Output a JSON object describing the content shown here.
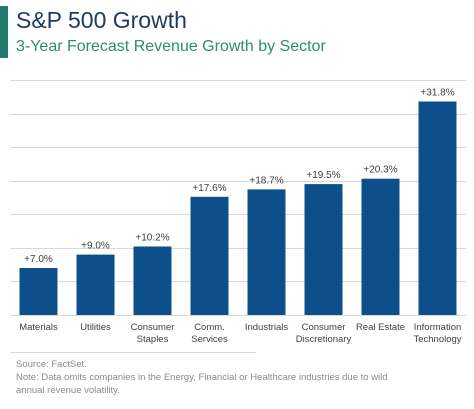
{
  "header": {
    "title": "S&P 500 Growth",
    "subtitle": "3-Year Forecast Revenue Growth by Sector"
  },
  "colors": {
    "accent": "#1f7a6b",
    "subtitle": "#2e8b75",
    "bar": "#0d4f8b",
    "grid": "#d9d9d9",
    "text": "#404040"
  },
  "chart_data": {
    "type": "bar",
    "categories": [
      [
        "Materials"
      ],
      [
        "Utilities"
      ],
      [
        "Consumer",
        "Staples"
      ],
      [
        "Comm.",
        "Services"
      ],
      [
        "Industrials"
      ],
      [
        "Consumer",
        "Discretionary"
      ],
      [
        "Real Estate"
      ],
      [
        "Information",
        "Technology"
      ]
    ],
    "values": [
      7.0,
      9.0,
      10.2,
      17.6,
      18.7,
      19.5,
      20.3,
      31.8
    ],
    "data_labels": [
      "+7.0%",
      "+9.0%",
      "+10.2%",
      "+17.6%",
      "+18.7%",
      "+19.5%",
      "+20.3%",
      "+31.8%"
    ],
    "title": "S&P 500 Growth",
    "subtitle": "3-Year Forecast Revenue Growth by Sector",
    "xlabel": "",
    "ylabel": "",
    "ylim": [
      0,
      35
    ],
    "grid": true,
    "legend": "none"
  },
  "footer": {
    "source": "Source: FactSet.",
    "note_line1": "Note: Data omits companies in the Energy, Financial or Healthcare industries due to wild",
    "note_line2": "annual revenue volatility."
  }
}
